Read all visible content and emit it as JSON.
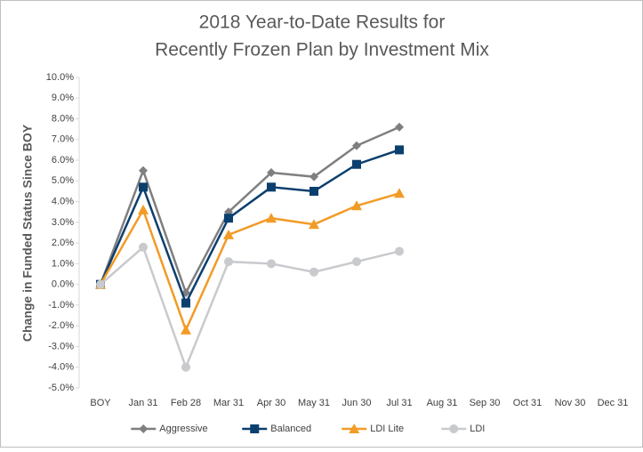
{
  "chart_data": {
    "type": "line",
    "title": [
      "2018 Year-to-Date Results for",
      "Recently Frozen Plan by Investment Mix"
    ],
    "y_label": "Change in Funded Status Since BOY",
    "categories": [
      "BOY",
      "Jan 31",
      "Feb 28",
      "Mar 31",
      "Apr 30",
      "May 31",
      "Jun 30",
      "Jul 31",
      "Aug 31",
      "Sep 30",
      "Oct 31",
      "Nov 30",
      "Dec 31"
    ],
    "series": [
      {
        "name": "Aggressive",
        "color": "#7f7f7f",
        "marker": "diamond",
        "values": [
          0,
          5.5,
          -0.4,
          3.5,
          5.4,
          5.2,
          6.7,
          7.6,
          null,
          null,
          null,
          null,
          null
        ]
      },
      {
        "name": "Balanced",
        "color": "#0b3f6e",
        "marker": "square",
        "values": [
          0,
          4.7,
          -0.9,
          3.2,
          4.7,
          4.5,
          5.8,
          6.5,
          null,
          null,
          null,
          null,
          null
        ]
      },
      {
        "name": "LDI Lite",
        "color": "#f29b26",
        "marker": "triangle",
        "values": [
          0,
          3.6,
          -2.2,
          2.4,
          3.2,
          2.9,
          3.8,
          4.4,
          null,
          null,
          null,
          null,
          null
        ]
      },
      {
        "name": "LDI",
        "color": "#c9cacd",
        "marker": "circle",
        "values": [
          0,
          1.8,
          -4.0,
          1.1,
          1.0,
          0.6,
          1.1,
          1.6,
          null,
          null,
          null,
          null,
          null
        ]
      }
    ],
    "ylim": [
      -5,
      10
    ],
    "yticks": [
      {
        "value": -5,
        "label": "-5.0%"
      },
      {
        "value": -4,
        "label": "-4.0%"
      },
      {
        "value": -3,
        "label": "-3.0%"
      },
      {
        "value": -2,
        "label": "-2.0%"
      },
      {
        "value": -1,
        "label": "-1.0%"
      },
      {
        "value": 0,
        "label": "0.0%"
      },
      {
        "value": 1,
        "label": "1.0%"
      },
      {
        "value": 2,
        "label": "2.0%"
      },
      {
        "value": 3,
        "label": "3.0%"
      },
      {
        "value": 4,
        "label": "4.0%"
      },
      {
        "value": 5,
        "label": "5.0%"
      },
      {
        "value": 6,
        "label": "6.0%"
      },
      {
        "value": 7,
        "label": "7.0%"
      },
      {
        "value": 8,
        "label": "8.0%"
      },
      {
        "value": 9,
        "label": "9.0%"
      },
      {
        "value": 10,
        "label": "10.0%"
      }
    ],
    "grid": false,
    "legend": "bottom"
  }
}
